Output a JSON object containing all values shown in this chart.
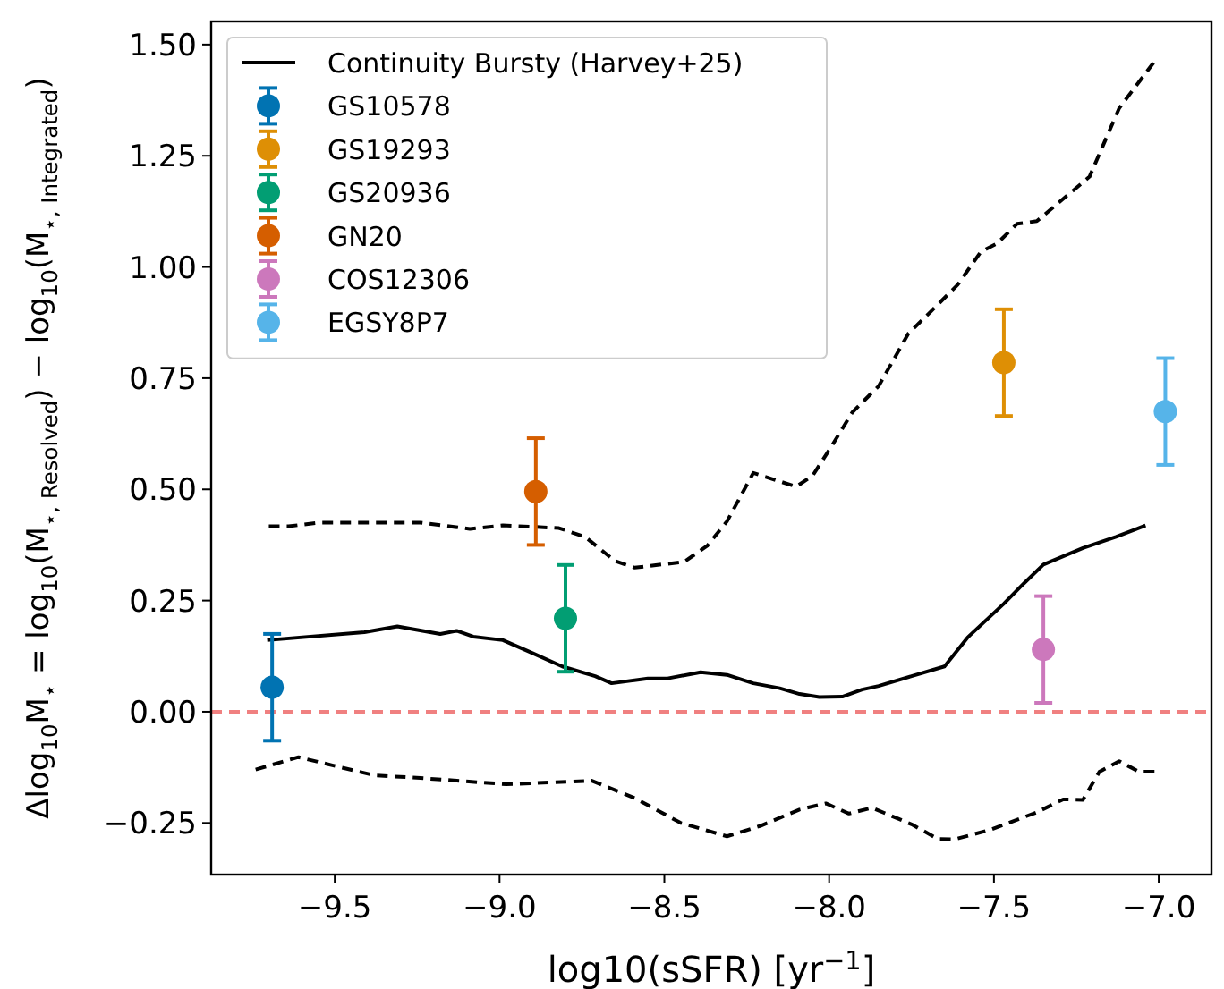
{
  "chart_data": {
    "type": "scatter",
    "xlabel": "log10(sSFR) [yr$^{−1}$]",
    "ylabel": "Δlog$_{10}$M$_{⋆}$ = log$_{10}$(M$_{⋆, Resolved}$) − log$_{10}$(M$_{⋆, Integrated}$)",
    "xlim": [
      -9.875,
      -6.84
    ],
    "ylim": [
      -0.366,
      1.552
    ],
    "xticks": [
      {
        "value": -9.5,
        "label": "−9.5"
      },
      {
        "value": -9.0,
        "label": "−9.0"
      },
      {
        "value": -8.5,
        "label": "−8.5"
      },
      {
        "value": -8.0,
        "label": "−8.0"
      },
      {
        "value": -7.5,
        "label": "−7.5"
      },
      {
        "value": -7.0,
        "label": "−7.0"
      }
    ],
    "yticks": [
      {
        "value": -0.25,
        "label": "−0.25"
      },
      {
        "value": 0,
        "label": "0.00"
      },
      {
        "value": 0.25,
        "label": "0.25"
      },
      {
        "value": 0.5,
        "label": "0.50"
      },
      {
        "value": 0.75,
        "label": "0.75"
      },
      {
        "value": 1.0,
        "label": "1.00"
      },
      {
        "value": 1.25,
        "label": "1.25"
      },
      {
        "value": 1.5,
        "label": "1.50"
      }
    ],
    "grid": false,
    "legend": "top left",
    "marker": "circle",
    "ref_lines": [
      {
        "axis": "y",
        "value": 0,
        "color": "#f08080",
        "line_style": "dashed"
      }
    ],
    "series": [
      {
        "type": "line",
        "name": "Continuity Bursty (Harvey+25)",
        "color": "#000000",
        "line_style": "solid",
        "marker": "none",
        "x": [
          -9.705,
          -9.41,
          -9.31,
          -9.18,
          -9.13,
          -9.08,
          -8.99,
          -8.9,
          -8.81,
          -8.71,
          -8.66,
          -8.55,
          -8.49,
          -8.39,
          -8.31,
          -8.23,
          -8.15,
          -8.09,
          -8.03,
          -7.96,
          -7.9,
          -7.85,
          -7.75,
          -7.65,
          -7.58,
          -7.47,
          -7.41,
          -7.35,
          -7.23,
          -7.13,
          -7.04
        ],
        "values": [
          0.161,
          0.179,
          0.192,
          0.175,
          0.182,
          0.169,
          0.161,
          0.132,
          0.102,
          0.08,
          0.064,
          0.075,
          0.075,
          0.089,
          0.083,
          0.064,
          0.053,
          0.04,
          0.033,
          0.034,
          0.05,
          0.058,
          0.08,
          0.102,
          0.167,
          0.243,
          0.288,
          0.331,
          0.368,
          0.393,
          0.419
        ]
      },
      {
        "type": "line",
        "color": "#000000",
        "line_style": "dashed",
        "marker": "none",
        "x": [
          -9.7,
          -9.64,
          -9.55,
          -9.24,
          -9.09,
          -8.99,
          -8.82,
          -8.74,
          -8.65,
          -8.59,
          -8.44,
          -8.37,
          -8.31,
          -8.23,
          -8.1,
          -8.05,
          -7.99,
          -7.93,
          -7.85,
          -7.76,
          -7.69,
          -7.61,
          -7.54,
          -7.49,
          -7.43,
          -7.37,
          -7.21,
          -7.12,
          -7.01
        ],
        "values": [
          0.417,
          0.417,
          0.425,
          0.425,
          0.411,
          0.419,
          0.413,
          0.393,
          0.339,
          0.324,
          0.337,
          0.373,
          0.428,
          0.537,
          0.506,
          0.531,
          0.6,
          0.673,
          0.732,
          0.85,
          0.901,
          0.96,
          1.034,
          1.053,
          1.097,
          1.103,
          1.203,
          1.357,
          1.465
        ]
      },
      {
        "type": "line",
        "color": "#000000",
        "line_style": "dashed",
        "marker": "none",
        "x": [
          -9.74,
          -9.61,
          -9.51,
          -9.38,
          -9.24,
          -8.98,
          -8.72,
          -8.59,
          -8.45,
          -8.31,
          -8.21,
          -8.09,
          -8.01,
          -7.94,
          -7.87,
          -7.75,
          -7.67,
          -7.62,
          -7.51,
          -7.37,
          -7.29,
          -7.23,
          -7.18,
          -7.12,
          -7.06,
          -7.01
        ],
        "values": [
          -0.13,
          -0.102,
          -0.12,
          -0.143,
          -0.149,
          -0.163,
          -0.155,
          -0.194,
          -0.25,
          -0.28,
          -0.257,
          -0.22,
          -0.206,
          -0.229,
          -0.216,
          -0.253,
          -0.286,
          -0.287,
          -0.265,
          -0.226,
          -0.197,
          -0.198,
          -0.135,
          -0.111,
          -0.135,
          -0.135
        ]
      },
      {
        "name": "GS10578",
        "color": "#0173b2",
        "x": [
          -9.69
        ],
        "values": [
          0.055
        ],
        "errors": [
          0.12
        ]
      },
      {
        "name": "GS19293",
        "color": "#de8f05",
        "x": [
          -7.47
        ],
        "values": [
          0.785
        ],
        "errors": [
          0.12
        ]
      },
      {
        "name": "GS20936",
        "color": "#029e73",
        "x": [
          -8.8
        ],
        "values": [
          0.21
        ],
        "errors": [
          0.12
        ]
      },
      {
        "name": "GN20",
        "color": "#d55e00",
        "x": [
          -8.89
        ],
        "values": [
          0.495
        ],
        "errors": [
          0.12
        ]
      },
      {
        "name": "COS12306",
        "color": "#cc78bc",
        "x": [
          -7.35
        ],
        "values": [
          0.14
        ],
        "errors": [
          0.12
        ]
      },
      {
        "name": "EGSY8P7",
        "color": "#56b4e9",
        "x": [
          -6.98
        ],
        "values": [
          0.675
        ],
        "errors": [
          0.12
        ]
      }
    ]
  }
}
